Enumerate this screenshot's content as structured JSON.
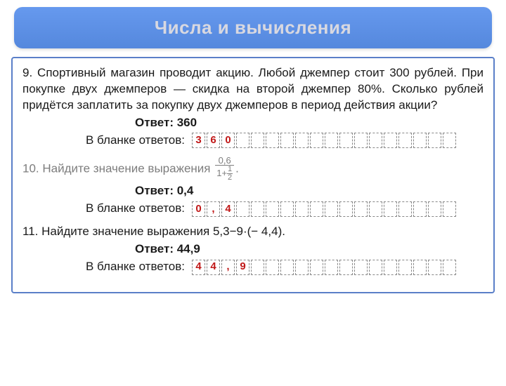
{
  "header": {
    "title": "Числа и вычисления"
  },
  "labels": {
    "answer_prefix": "Ответ: ",
    "blank_label": "В бланке ответов:"
  },
  "problems": {
    "p9": {
      "text": "9. Спортивный магазин проводит акцию. Любой джемпер стоит 300 рублей. При покупке двух джемперов — скидка на второй джемпер 80%. Сколько рублей придётся заплатить за покупку двух джемперов в период действия акции?",
      "answer": "360",
      "cells": [
        "3",
        "6",
        "0",
        "",
        "",
        "",
        "",
        "",
        "",
        "",
        "",
        "",
        "",
        "",
        "",
        "",
        "",
        ""
      ],
      "cell_red": [
        true,
        true,
        true,
        false,
        false,
        false,
        false,
        false,
        false,
        false,
        false,
        false,
        false,
        false,
        false,
        false,
        false,
        false
      ]
    },
    "p10": {
      "prefix": "10. Найдите значение выражения ",
      "frac_num": "0,6",
      "frac_den_pre": "1+",
      "frac_den_sub_num": "1",
      "frac_den_sub_den": "2",
      "suffix": ".",
      "answer": "0,4",
      "cells": [
        "0",
        ",",
        "4",
        "",
        "",
        "",
        "",
        "",
        "",
        "",
        "",
        "",
        "",
        "",
        "",
        "",
        "",
        ""
      ],
      "cell_red": [
        true,
        true,
        true,
        false,
        false,
        false,
        false,
        false,
        false,
        false,
        false,
        false,
        false,
        false,
        false,
        false,
        false,
        false
      ]
    },
    "p11": {
      "text": "11. Найдите значение выражения 5,3−9·(− 4,4).",
      "answer": "44,9",
      "cells": [
        "4",
        "4",
        ",",
        "9",
        "",
        "",
        "",
        "",
        "",
        "",
        "",
        "",
        "",
        "",
        "",
        "",
        "",
        ""
      ],
      "cell_red": [
        true,
        true,
        true,
        true,
        false,
        false,
        false,
        false,
        false,
        false,
        false,
        false,
        false,
        false,
        false,
        false,
        false,
        false
      ]
    }
  },
  "style": {
    "header_bg": "#5f8ae0",
    "header_text": "#d8d8e0",
    "border": "#5a7fc8",
    "red": "#c01818",
    "faded": "#7d7d7d",
    "cell_border": "#888888"
  }
}
